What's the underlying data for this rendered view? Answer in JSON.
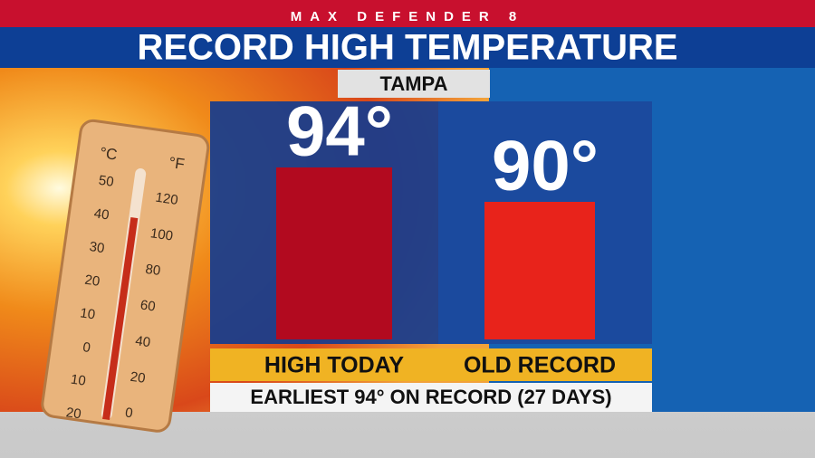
{
  "chart_data": {
    "type": "bar",
    "brand": "MAX DEFENDER 8",
    "title": "RECORD HIGH TEMPERATURE",
    "subtitle": "TAMPA",
    "categories": [
      "HIGH TODAY",
      "OLD RECORD"
    ],
    "values": [
      94,
      90
    ],
    "value_labels": [
      "94°",
      "90°"
    ],
    "colors": [
      "#b20a1f",
      "#e8231b"
    ],
    "ylim": [
      74,
      100
    ],
    "annotation": "EARLIEST 94° ON RECORD (27 DAYS)"
  },
  "background_image": {
    "celsius_label": "°C",
    "fahrenheit_label": "°F",
    "celsius_ticks": [
      "50",
      "40",
      "30",
      "20",
      "10",
      "0",
      "10",
      "20"
    ],
    "fahrenheit_ticks": [
      "120",
      "100",
      "80",
      "60",
      "40",
      "20",
      "0"
    ]
  }
}
